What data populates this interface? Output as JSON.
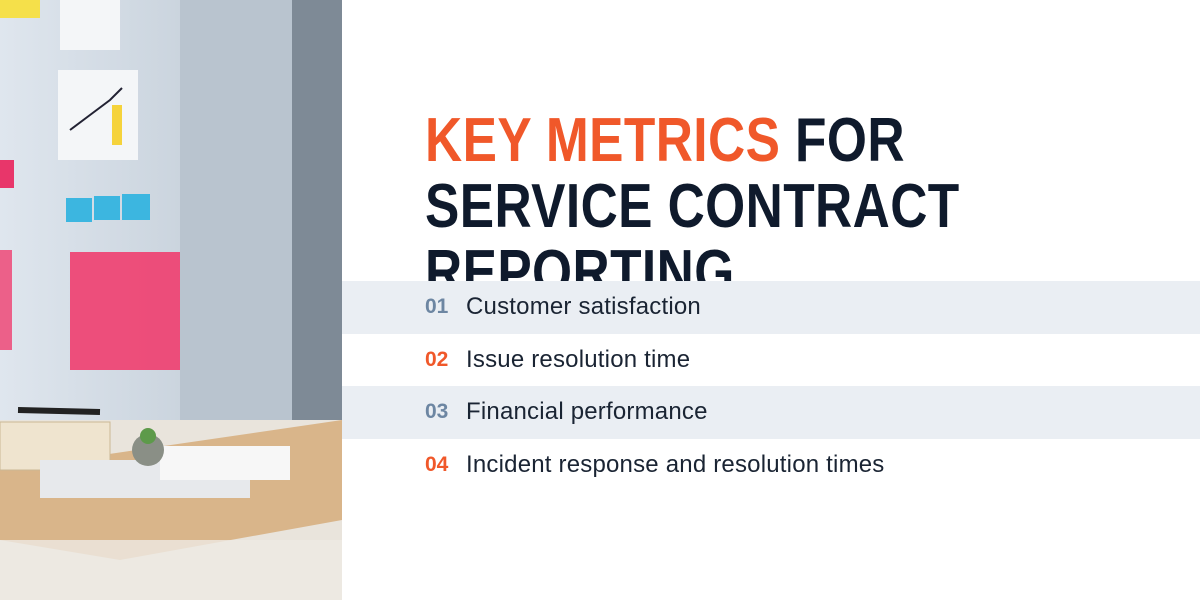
{
  "title": {
    "highlight": "KEY METRICS",
    "rest": "FOR SERVICE CONTRACT REPORTING"
  },
  "items": [
    {
      "number": "01",
      "label": "Customer satisfaction"
    },
    {
      "number": "02",
      "label": "Issue resolution time"
    },
    {
      "number": "03",
      "label": "Financial performance"
    },
    {
      "number": "04",
      "label": "Incident response and resolution times"
    }
  ]
}
